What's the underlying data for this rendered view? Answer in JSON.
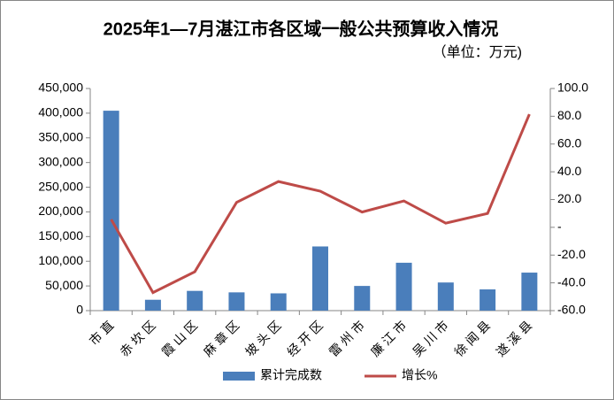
{
  "chart_data": {
    "type": "bar",
    "title": "2025年1—7月湛江市各区域一般公共预算收入情况",
    "subtitle": "（单位：万元)",
    "categories": [
      "市直",
      "赤坎区",
      "霞山区",
      "麻章区",
      "坡头区",
      "经开区",
      "雷州市",
      "廉江市",
      "吴川市",
      "徐闻县",
      "遂溪县"
    ],
    "series": [
      {
        "name": "累计完成数",
        "type": "bar",
        "color": "#4a7ebb",
        "values": [
          405000,
          22000,
          40000,
          37000,
          35000,
          130000,
          50000,
          97000,
          57000,
          43000,
          77000
        ]
      },
      {
        "name": "增长%",
        "type": "line",
        "axis": "y2",
        "color": "#be4b48",
        "values": [
          5.7,
          -47,
          -32,
          18,
          33,
          26,
          11,
          19,
          3,
          10,
          81.5
        ]
      }
    ],
    "ylim": [
      0,
      450000
    ],
    "yticks": [
      0,
      {
        "value": 50000,
        "label": "50,000"
      },
      {
        "value": 100000,
        "label": "100,000"
      },
      {
        "value": 150000,
        "label": "150,000"
      },
      {
        "value": 200000,
        "label": "200,000"
      },
      {
        "value": 250000,
        "label": "250,000"
      },
      {
        "value": 300000,
        "label": "300,000"
      },
      {
        "value": 350000,
        "label": "350,000"
      },
      {
        "value": 400000,
        "label": "400,000"
      },
      {
        "value": 450000,
        "label": "450,000"
      }
    ],
    "y2lim": [
      -60,
      100
    ],
    "y2ticks": [
      {
        "value": -60,
        "label": "-60.0"
      },
      {
        "value": -40,
        "label": "-40.0"
      },
      {
        "value": -20,
        "label": "-20.0"
      },
      {
        "value": 0,
        "label": "-"
      },
      {
        "value": 20,
        "label": "20.0"
      },
      {
        "value": 40,
        "label": "40.0"
      },
      {
        "value": 60,
        "label": "60.0"
      },
      {
        "value": 80,
        "label": "80.0"
      },
      {
        "value": 100,
        "label": "100.0"
      }
    ],
    "legend": "bottom"
  }
}
